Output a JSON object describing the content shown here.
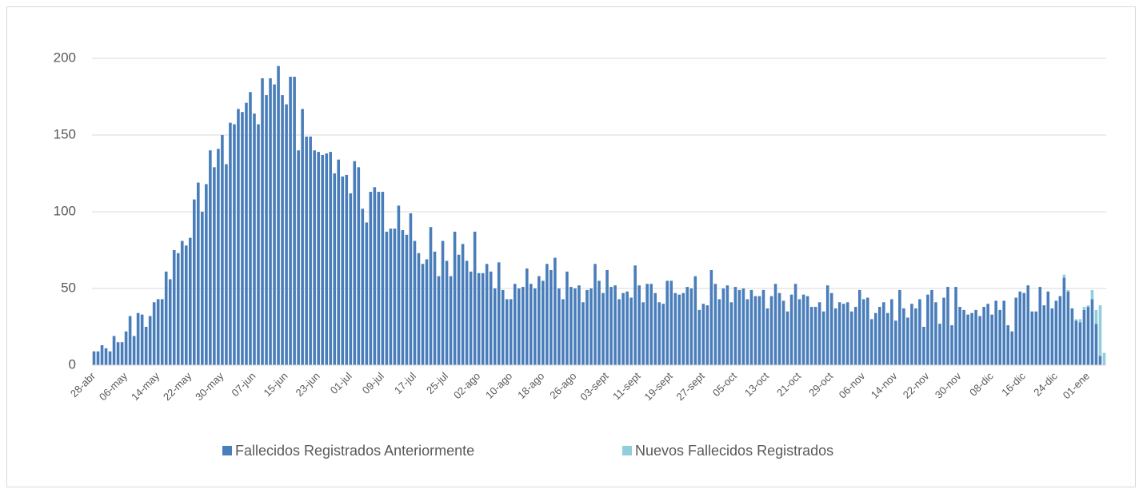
{
  "chart_data": {
    "type": "stacked-bar",
    "categories": [
      "28-abr",
      null,
      null,
      null,
      null,
      null,
      null,
      null,
      "06-may",
      null,
      null,
      null,
      null,
      null,
      null,
      null,
      "14-may",
      null,
      null,
      null,
      null,
      null,
      null,
      null,
      "22-may",
      null,
      null,
      null,
      null,
      null,
      null,
      null,
      "30-may",
      null,
      null,
      null,
      null,
      null,
      null,
      null,
      "07-jun",
      null,
      null,
      null,
      null,
      null,
      null,
      null,
      "15-jun",
      null,
      null,
      null,
      null,
      null,
      null,
      null,
      "23-jun",
      null,
      null,
      null,
      null,
      null,
      null,
      null,
      "01-jul",
      null,
      null,
      null,
      null,
      null,
      null,
      null,
      "09-jul",
      null,
      null,
      null,
      null,
      null,
      null,
      null,
      "17-jul",
      null,
      null,
      null,
      null,
      null,
      null,
      null,
      "25-jul",
      null,
      null,
      null,
      null,
      null,
      null,
      null,
      "02-ago",
      null,
      null,
      null,
      null,
      null,
      null,
      null,
      "10-ago",
      null,
      null,
      null,
      null,
      null,
      null,
      null,
      "18-ago",
      null,
      null,
      null,
      null,
      null,
      null,
      null,
      "26-ago",
      null,
      null,
      null,
      null,
      null,
      null,
      null,
      "03-sept",
      null,
      null,
      null,
      null,
      null,
      null,
      null,
      "11-sept",
      null,
      null,
      null,
      null,
      null,
      null,
      null,
      "19-sept",
      null,
      null,
      null,
      null,
      null,
      null,
      null,
      "27-sept",
      null,
      null,
      null,
      null,
      null,
      null,
      null,
      "05-oct",
      null,
      null,
      null,
      null,
      null,
      null,
      null,
      "13-oct",
      null,
      null,
      null,
      null,
      null,
      null,
      null,
      "21-oct",
      null,
      null,
      null,
      null,
      null,
      null,
      null,
      "29-oct",
      null,
      null,
      null,
      null,
      null,
      null,
      null,
      "06-nov",
      null,
      null,
      null,
      null,
      null,
      null,
      null,
      "14-nov",
      null,
      null,
      null,
      null,
      null,
      null,
      null,
      "22-nov",
      null,
      null,
      null,
      null,
      null,
      null,
      null,
      "30-nov",
      null,
      null,
      null,
      null,
      null,
      null,
      null,
      "08-dic",
      null,
      null,
      null,
      null,
      null,
      null,
      null,
      "16-dic",
      null,
      null,
      null,
      null,
      null,
      null,
      null,
      "24-dic",
      null,
      null,
      null,
      null,
      null,
      null,
      null,
      "01-ene",
      null,
      null,
      null,
      null
    ],
    "series": [
      {
        "name": "Fallecidos Registrados Anteriormente",
        "color": "#4a7ebb",
        "values": [
          9,
          9,
          13,
          11,
          9,
          19,
          15,
          15,
          22,
          32,
          19,
          34,
          33,
          25,
          32,
          41,
          43,
          43,
          61,
          56,
          75,
          73,
          81,
          78,
          83,
          108,
          119,
          100,
          118,
          140,
          129,
          141,
          150,
          131,
          158,
          157,
          167,
          165,
          171,
          178,
          164,
          157,
          187,
          176,
          187,
          183,
          195,
          176,
          170,
          188,
          188,
          140,
          167,
          149,
          149,
          140,
          139,
          137,
          138,
          139,
          125,
          134,
          123,
          124,
          112,
          133,
          129,
          102,
          93,
          113,
          116,
          113,
          113,
          87,
          89,
          89,
          104,
          88,
          85,
          99,
          81,
          73,
          66,
          69,
          90,
          74,
          58,
          81,
          68,
          58,
          87,
          72,
          79,
          68,
          61,
          87,
          60,
          60,
          66,
          61,
          50,
          67,
          49,
          43,
          43,
          53,
          50,
          51,
          63,
          53,
          50,
          58,
          55,
          66,
          62,
          70,
          50,
          43,
          61,
          51,
          50,
          52,
          41,
          49,
          50,
          66,
          55,
          47,
          62,
          51,
          52,
          43,
          47,
          48,
          44,
          65,
          52,
          41,
          53,
          53,
          47,
          41,
          40,
          55,
          55,
          47,
          46,
          47,
          51,
          50,
          58,
          36,
          40,
          39,
          62,
          53,
          43,
          50,
          52,
          41,
          51,
          49,
          50,
          43,
          49,
          45,
          45,
          49,
          37,
          45,
          53,
          47,
          42,
          35,
          46,
          53,
          43,
          46,
          45,
          38,
          38,
          41,
          35,
          52,
          47,
          37,
          41,
          40,
          41,
          35,
          38,
          49,
          43,
          44,
          30,
          34,
          38,
          41,
          34,
          43,
          29,
          49,
          37,
          31,
          40,
          37,
          43,
          25,
          46,
          49,
          41,
          27,
          44,
          51,
          26,
          51,
          38,
          36,
          33,
          34,
          36,
          32,
          38,
          40,
          33,
          42,
          36,
          42,
          26,
          22,
          44,
          48,
          47,
          52,
          35,
          35,
          51,
          39,
          48,
          37,
          42,
          45,
          57,
          48,
          37,
          29,
          28,
          36,
          38,
          43,
          27,
          6,
          0
        ]
      },
      {
        "name": "Nuevos Fallecidos Registrados",
        "color": "#92cddc",
        "values": [
          0,
          0,
          0,
          0,
          0,
          0,
          0,
          0,
          0,
          0,
          0,
          0,
          0,
          0,
          0,
          0,
          0,
          0,
          0,
          0,
          0,
          0,
          0,
          0,
          0,
          0,
          0,
          0,
          0,
          0,
          0,
          0,
          0,
          0,
          0,
          0,
          0,
          0,
          0,
          0,
          0,
          0,
          0,
          0,
          0,
          0,
          0,
          0,
          0,
          0,
          0,
          0,
          0,
          0,
          0,
          0,
          0,
          0,
          0,
          0,
          0,
          0,
          0,
          0,
          0,
          0,
          0,
          0,
          0,
          0,
          0,
          0,
          0,
          0,
          0,
          0,
          0,
          0,
          0,
          0,
          0,
          0,
          0,
          0,
          0,
          0,
          0,
          0,
          0,
          0,
          0,
          0,
          0,
          0,
          0,
          0,
          0,
          0,
          0,
          0,
          0,
          0,
          0,
          0,
          0,
          0,
          0,
          0,
          0,
          0,
          0,
          0,
          0,
          0,
          0,
          0,
          0,
          0,
          0,
          0,
          0,
          0,
          0,
          0,
          0,
          0,
          0,
          0,
          0,
          0,
          0,
          0,
          0,
          0,
          0,
          0,
          0,
          0,
          0,
          0,
          0,
          0,
          0,
          0,
          0,
          0,
          0,
          0,
          0,
          0,
          0,
          0,
          0,
          0,
          0,
          0,
          0,
          0,
          0,
          0,
          0,
          0,
          0,
          0,
          0,
          0,
          0,
          0,
          0,
          0,
          0,
          0,
          0,
          0,
          0,
          0,
          0,
          0,
          0,
          0,
          0,
          0,
          0,
          0,
          0,
          0,
          0,
          0,
          0,
          0,
          0,
          0,
          0,
          0,
          0,
          0,
          0,
          0,
          0,
          0,
          0,
          0,
          0,
          0,
          0,
          0,
          0,
          0,
          0,
          0,
          0,
          0,
          0,
          0,
          0,
          0,
          0,
          0,
          0,
          0,
          0,
          0,
          0,
          0,
          0,
          0,
          0,
          0,
          0,
          0,
          0,
          0,
          0,
          0,
          0,
          0,
          0,
          0,
          0,
          0,
          0,
          0,
          2,
          1,
          0,
          1,
          2,
          2,
          1,
          6,
          9,
          33,
          8
        ]
      }
    ],
    "ylim": [
      0,
      200
    ],
    "yticks": [
      0,
      50,
      100,
      150,
      200
    ],
    "grid": true,
    "legend": "bottom"
  }
}
